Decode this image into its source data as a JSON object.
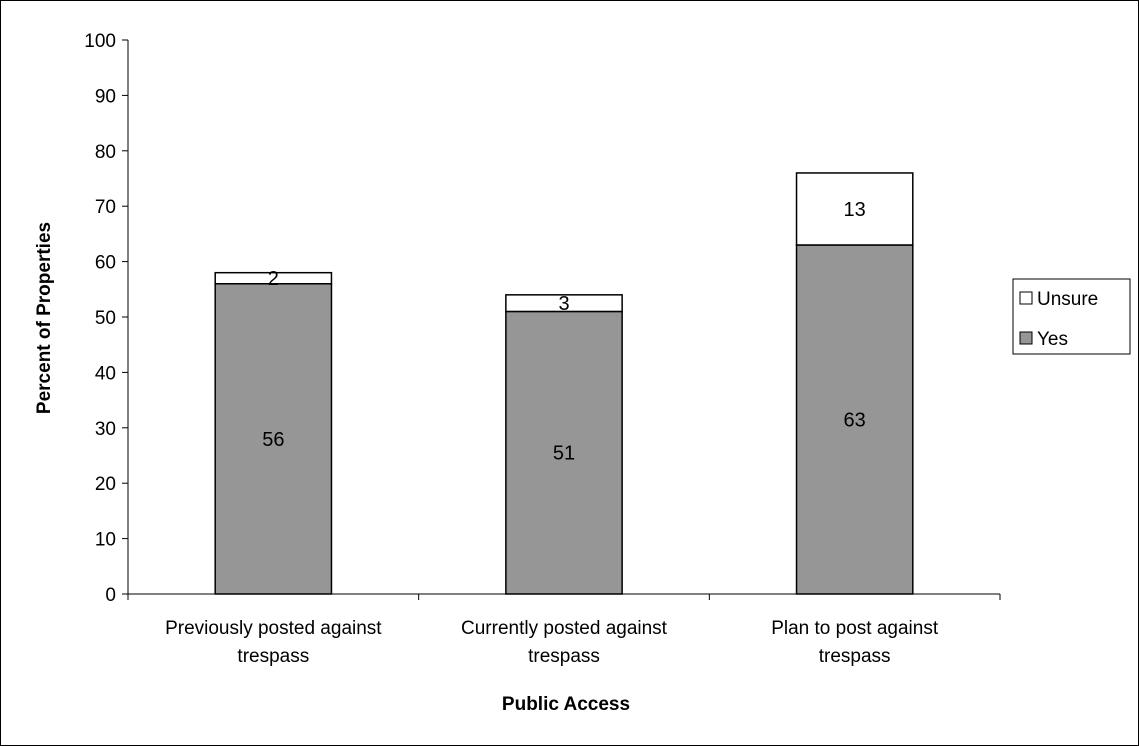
{
  "chart_data": {
    "type": "bar",
    "stacked": true,
    "categories": [
      [
        "Previously posted against",
        "trespass"
      ],
      [
        "Currently posted against",
        "trespass"
      ],
      [
        "Plan to post against",
        "trespass"
      ]
    ],
    "series": [
      {
        "name": "Yes",
        "values": [
          56,
          51,
          63
        ],
        "color": "#969696"
      },
      {
        "name": "Unsure",
        "values": [
          2,
          3,
          13
        ],
        "color": "#ffffff"
      }
    ],
    "xlabel": "Public Access",
    "ylabel": "Percent of Properties",
    "ylim": [
      0,
      100
    ],
    "yticks": [
      0,
      10,
      20,
      30,
      40,
      50,
      60,
      70,
      80,
      90,
      100
    ],
    "grid": false,
    "legend": "right"
  }
}
